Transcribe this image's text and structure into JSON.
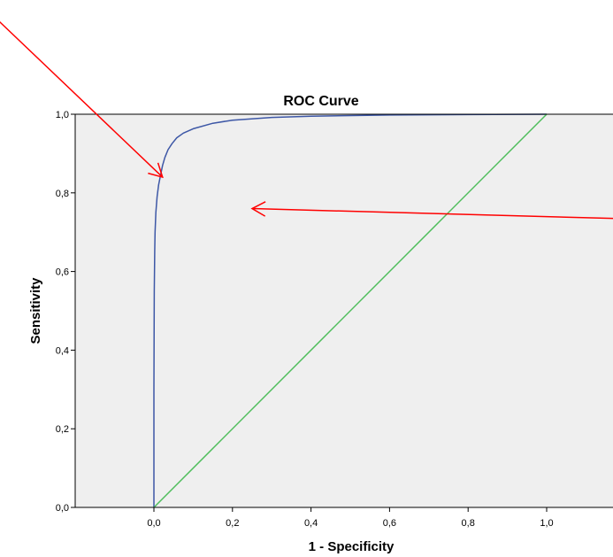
{
  "chart_data": {
    "type": "line",
    "title": "ROC Curve",
    "xlabel": "1 - Specificity",
    "ylabel": "Sensitivity",
    "xlim": [
      -0.2,
      1.17
    ],
    "ylim": [
      0,
      1
    ],
    "x_ticks": [
      {
        "value": 0.0,
        "label": "0,0"
      },
      {
        "value": 0.2,
        "label": "0,2"
      },
      {
        "value": 0.4,
        "label": "0,4"
      },
      {
        "value": 0.6,
        "label": "0,6"
      },
      {
        "value": 0.8,
        "label": "0,8"
      },
      {
        "value": 1.0,
        "label": "1,0"
      }
    ],
    "y_ticks": [
      {
        "value": 0.0,
        "label": "0,0"
      },
      {
        "value": 0.2,
        "label": "0,2"
      },
      {
        "value": 0.4,
        "label": "0,4"
      },
      {
        "value": 0.6,
        "label": "0,6"
      },
      {
        "value": 0.8,
        "label": "0,8"
      },
      {
        "value": 1.0,
        "label": "1,0"
      }
    ],
    "grid": false,
    "plot_background": "#efefef",
    "series": [
      {
        "color": "#3d57a6",
        "x": [
          0.0,
          0.0,
          0.001,
          0.002,
          0.003,
          0.005,
          0.008,
          0.012,
          0.017,
          0.022,
          0.028,
          0.036,
          0.046,
          0.058,
          0.075,
          0.1,
          0.15,
          0.2,
          0.3,
          0.4,
          0.6,
          0.8,
          1.0
        ],
        "y": [
          0.0,
          0.3,
          0.55,
          0.65,
          0.7,
          0.75,
          0.79,
          0.82,
          0.845,
          0.87,
          0.89,
          0.91,
          0.925,
          0.94,
          0.952,
          0.963,
          0.977,
          0.985,
          0.992,
          0.995,
          0.998,
          0.999,
          1.0
        ]
      },
      {
        "color": "#4fbe5c",
        "x": [
          0,
          1
        ],
        "y": [
          0,
          1
        ]
      }
    ],
    "annotations": [
      {
        "type": "arrow",
        "color": "#ff0000",
        "from_xy": [
          -0.44,
          1.28
        ],
        "to_xy": [
          0.022,
          0.84
        ]
      },
      {
        "type": "arrow",
        "color": "#ff0000",
        "from_xy": [
          1.17,
          0.735
        ],
        "to_xy": [
          0.25,
          0.76
        ]
      }
    ]
  }
}
